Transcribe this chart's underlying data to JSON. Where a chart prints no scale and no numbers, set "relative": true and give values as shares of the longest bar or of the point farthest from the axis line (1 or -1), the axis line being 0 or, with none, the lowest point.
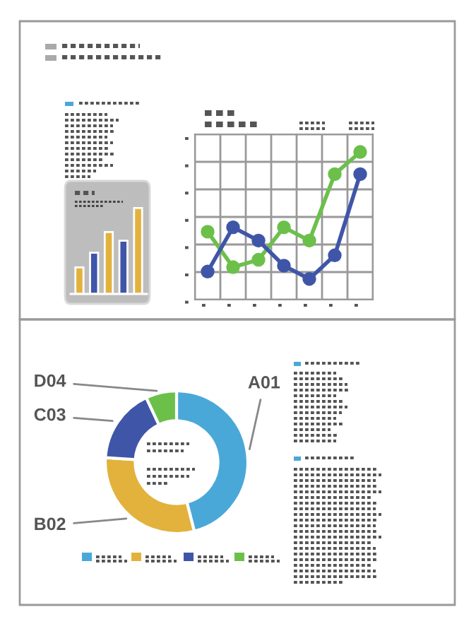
{
  "chart_data": [
    {
      "type": "bar",
      "relative": true,
      "categories": [
        null,
        null,
        null,
        null,
        null
      ],
      "values": [
        0.31,
        0.48,
        0.72,
        0.62,
        1.0
      ],
      "colors": [
        "#e3b23c",
        "#3f56a8",
        "#e3b23c",
        "#3f56a8",
        "#e3b23c"
      ]
    },
    {
      "type": "line",
      "relative": true,
      "categories": [
        null,
        null,
        null,
        null,
        null,
        null,
        null
      ],
      "grid": true,
      "marker": "circle",
      "line_style": "solid",
      "series": [
        {
          "color": "#6cc04a",
          "values": [
            0.46,
            0.22,
            0.27,
            0.49,
            0.4,
            0.85,
            1.0
          ]
        },
        {
          "color": "#3f56a8",
          "values": [
            0.19,
            0.49,
            0.4,
            0.23,
            0.14,
            0.3,
            0.85
          ]
        }
      ]
    },
    {
      "type": "donut",
      "categories": [
        "A01",
        "B02",
        "C03",
        "D04"
      ],
      "values": [
        46,
        30,
        17,
        7
      ],
      "colors": [
        "#4aa8d8",
        "#e3b23c",
        "#3f56a8",
        "#6cc04a"
      ]
    }
  ]
}
